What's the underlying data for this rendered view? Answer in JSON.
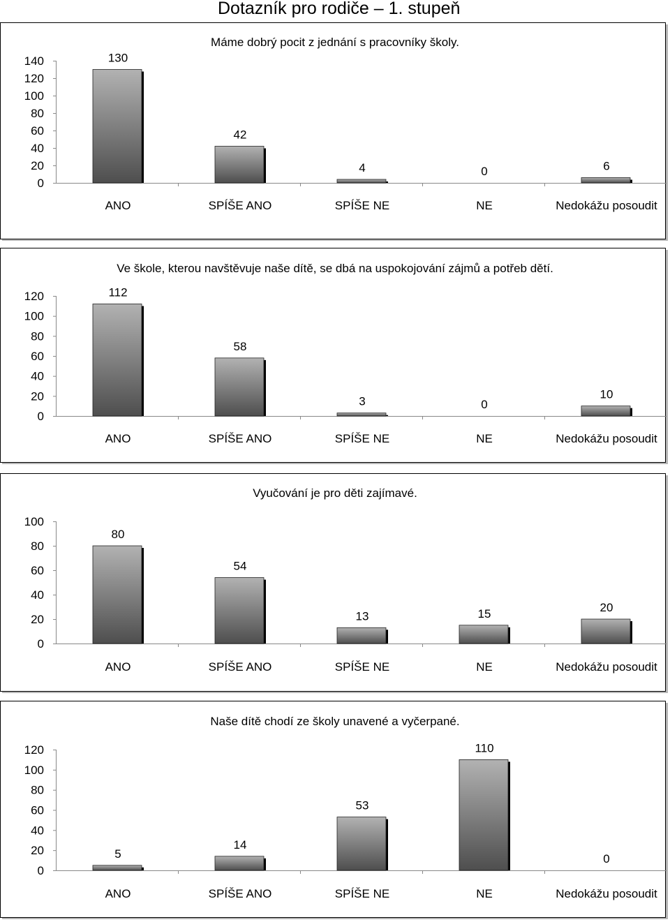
{
  "page": {
    "title": "Dotazník pro rodiče – 1. stupeň"
  },
  "colors": {
    "bar_light": "#b2b2b2",
    "bar_dark": "#4e4e4e",
    "bar_shadow": "#000000"
  },
  "chart_data": [
    {
      "type": "bar",
      "title": "Máme dobrý pocit z jednání s pracovníky školy.",
      "categories": [
        "ANO",
        "SPÍŠE ANO",
        "SPÍŠE NE",
        "NE",
        "Nedokážu posoudit"
      ],
      "values": [
        130,
        42,
        4,
        0,
        6
      ],
      "ylim": [
        0,
        140
      ],
      "yticks": [
        0,
        20,
        40,
        60,
        80,
        100,
        120,
        140
      ],
      "legend": false,
      "grid": false
    },
    {
      "type": "bar",
      "title": "Ve škole, kterou navštěvuje naše dítě, se dbá na uspokojování zájmů a potřeb dětí.",
      "categories": [
        "ANO",
        "SPÍŠE ANO",
        "SPÍŠE NE",
        "NE",
        "Nedokážu posoudit"
      ],
      "values": [
        112,
        58,
        3,
        0,
        10
      ],
      "ylim": [
        0,
        120
      ],
      "yticks": [
        0,
        20,
        40,
        60,
        80,
        100,
        120
      ],
      "legend": false,
      "grid": false
    },
    {
      "type": "bar",
      "title": "Vyučování je pro děti zajímavé.",
      "categories": [
        "ANO",
        "SPÍŠE ANO",
        "SPÍŠE NE",
        "NE",
        "Nedokážu posoudit"
      ],
      "values": [
        80,
        54,
        13,
        15,
        20
      ],
      "ylim": [
        0,
        100
      ],
      "yticks": [
        0,
        20,
        40,
        60,
        80,
        100
      ],
      "legend": false,
      "grid": false
    },
    {
      "type": "bar",
      "title": "Naše dítě chodí ze školy unavené a vyčerpané.",
      "categories": [
        "ANO",
        "SPÍŠE ANO",
        "SPÍŠE NE",
        "NE",
        "Nedokážu posoudit"
      ],
      "values": [
        5,
        14,
        53,
        110,
        0
      ],
      "ylim": [
        0,
        120
      ],
      "yticks": [
        0,
        20,
        40,
        60,
        80,
        100,
        120
      ],
      "legend": false,
      "grid": false
    }
  ]
}
